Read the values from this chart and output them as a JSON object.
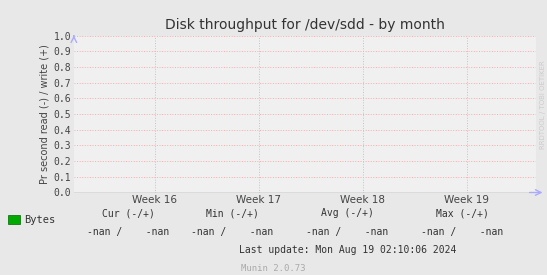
{
  "title": "Disk throughput for /dev/sdd - by month",
  "ylabel": "Pr second read (-) / write (+)",
  "ylim": [
    0.0,
    1.0
  ],
  "yticks": [
    0.0,
    0.1,
    0.2,
    0.3,
    0.4,
    0.5,
    0.6,
    0.7,
    0.8,
    0.9,
    1.0
  ],
  "xtick_labels": [
    "Week 16",
    "Week 17",
    "Week 18",
    "Week 19"
  ],
  "xtick_positions": [
    0.175,
    0.4,
    0.625,
    0.85
  ],
  "grid_color": "#ffaaaa",
  "bg_color": "#e8e8e8",
  "plot_bg_color": "#f0f0f0",
  "axis_color": "#888888",
  "title_color": "#333333",
  "tick_color": "#444444",
  "legend_label": "Bytes",
  "legend_color": "#00aa00",
  "cur_label": "Cur (-/+)",
  "min_label": "Min (-/+)",
  "avg_label": "Avg (-/+)",
  "max_label": "Max (-/+)",
  "cur_val": "-nan /    -nan",
  "min_val": "-nan /    -nan",
  "avg_val": "-nan /    -nan",
  "max_val": "-nan /    -nan",
  "last_update": "Last update: Mon Aug 19 02:10:06 2024",
  "munin_version": "Munin 2.0.73",
  "watermark": "RRDTOOL / TOBI OETIKER",
  "arrow_color": "#aaaaff",
  "line_color": "#00cc00",
  "font_mono": "DejaVu Sans Mono"
}
